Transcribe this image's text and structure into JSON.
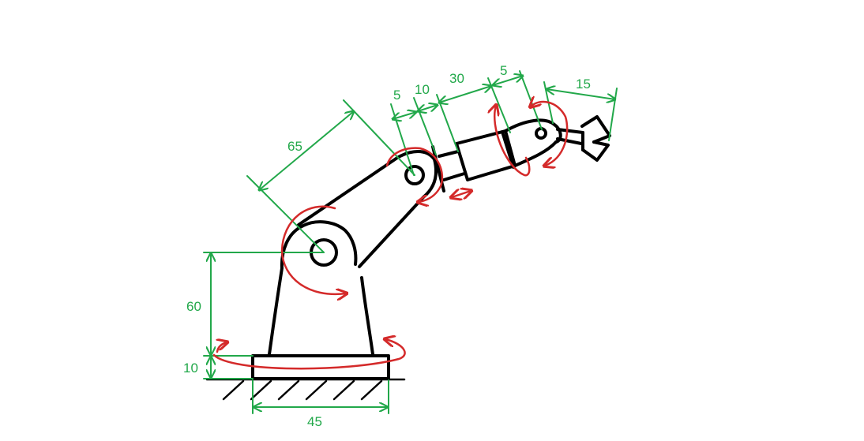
{
  "colors": {
    "outline": "#000000",
    "dimension": "#22a84a",
    "rotation": "#d42a2a",
    "background": "#ffffff"
  },
  "dimensions": {
    "base_height": "10",
    "shoulder_height": "60",
    "base_width": "45",
    "upper_arm": "65",
    "elbow_offset": "5",
    "elbow_joint": "10",
    "forearm": "30",
    "wrist_offset": "5",
    "gripper": "15"
  }
}
